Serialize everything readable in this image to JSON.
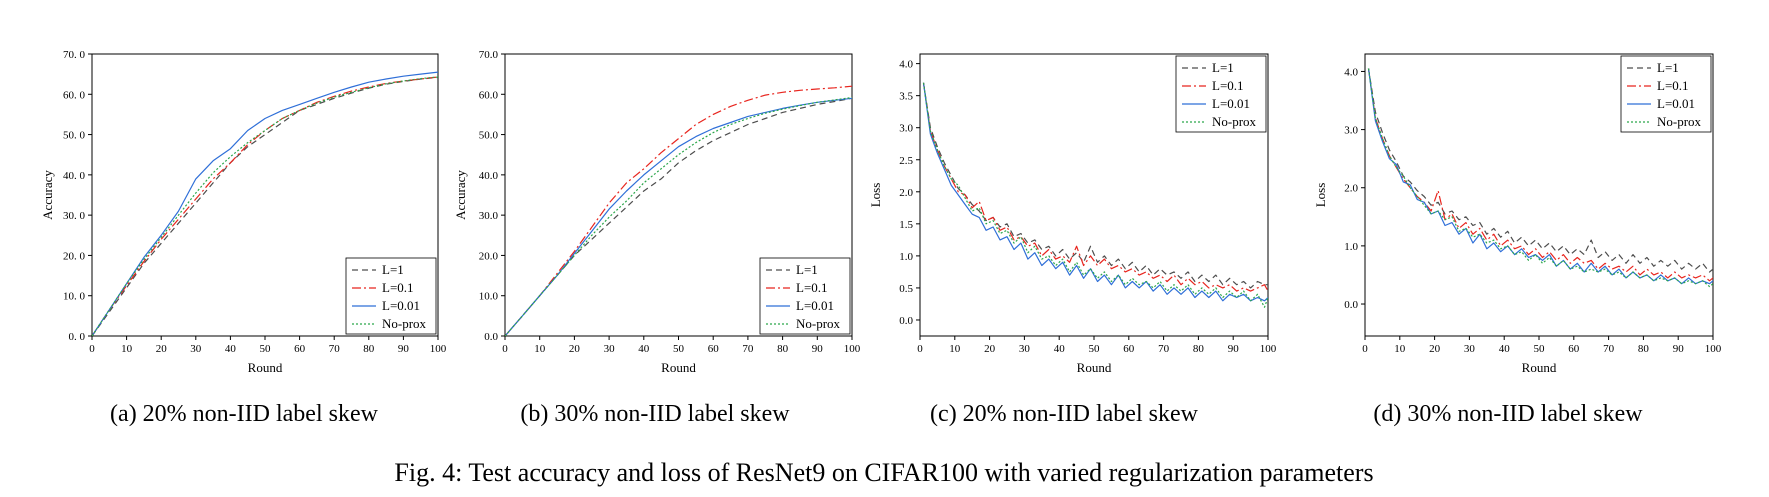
{
  "figure": {
    "caption": "Fig. 4: Test accuracy and loss of ResNet9 on CIFAR100 with varied regularization parameters"
  },
  "styles": {
    "colors": {
      "L=1": "#4d4d4d",
      "L=0.1": "#e8251e",
      "L=0.01": "#2f6fd8",
      "No-prox": "#2aa64a"
    },
    "dashes": {
      "L=1": "6,4",
      "L=0.1": "9,3,2,3",
      "L=0.01": "",
      "No-prox": "2,2"
    }
  },
  "chart_data": [
    {
      "type": "line",
      "subcaption": "(a) 20% non-IID label skew",
      "xlabel": "Round",
      "ylabel": "Accuracy",
      "xlim": [
        0,
        100
      ],
      "ylim": [
        0,
        70
      ],
      "xticks": [
        "0",
        "10",
        "20",
        "30",
        "40",
        "50",
        "60",
        "70",
        "80",
        "90",
        "100"
      ],
      "xtick_values": [
        0,
        10,
        20,
        30,
        40,
        50,
        60,
        70,
        80,
        90,
        100
      ],
      "yticks": [
        "0. 0",
        "10. 0",
        "20. 0",
        "30. 0",
        "40. 0",
        "50. 0",
        "60. 0",
        "70. 0"
      ],
      "ytick_values": [
        0,
        10,
        20,
        30,
        40,
        50,
        60,
        70
      ],
      "legend": {
        "position": "bottom-right",
        "entries": [
          "L=1",
          "L=0.1",
          "L=0.01",
          "No-prox"
        ]
      },
      "x": [
        0,
        5,
        10,
        15,
        20,
        25,
        30,
        35,
        40,
        45,
        50,
        55,
        60,
        65,
        70,
        75,
        80,
        85,
        90,
        95,
        100
      ],
      "series": [
        {
          "name": "L=1",
          "values": [
            0,
            6,
            12,
            18,
            23,
            28,
            33,
            38,
            43,
            47,
            50,
            53,
            56,
            57.5,
            59,
            60.3,
            61.5,
            62.5,
            63.2,
            63.8,
            64.2
          ]
        },
        {
          "name": "L=0.1",
          "values": [
            0,
            6.5,
            12.5,
            18.5,
            24,
            29,
            34,
            39,
            43,
            47.5,
            51,
            54,
            56,
            58,
            59.5,
            60.8,
            61.8,
            62.7,
            63.3,
            63.8,
            64.3
          ]
        },
        {
          "name": "L=0.01",
          "values": [
            0,
            6.5,
            13,
            19.5,
            25,
            31,
            39,
            43.5,
            46.5,
            51,
            54,
            56,
            57.5,
            59,
            60.5,
            61.8,
            63,
            63.8,
            64.5,
            65,
            65.5
          ]
        },
        {
          "name": "No-prox",
          "values": [
            0,
            6.5,
            13,
            19,
            24.5,
            30,
            35.5,
            40.5,
            44.5,
            48,
            51,
            54,
            56,
            57.8,
            59.3,
            60.5,
            61.6,
            62.6,
            63.3,
            63.9,
            64.3
          ]
        }
      ]
    },
    {
      "type": "line",
      "subcaption": "(b) 30% non-IID label skew",
      "xlabel": "Round",
      "ylabel": "Accuracy",
      "xlim": [
        0,
        100
      ],
      "ylim": [
        0,
        70
      ],
      "xticks": [
        "0",
        "10",
        "20",
        "30",
        "40",
        "50",
        "60",
        "70",
        "80",
        "90",
        "100"
      ],
      "xtick_values": [
        0,
        10,
        20,
        30,
        40,
        50,
        60,
        70,
        80,
        90,
        100
      ],
      "yticks": [
        "0.0",
        "10.0",
        "20.0",
        "30.0",
        "40.0",
        "50.0",
        "60.0",
        "70.0"
      ],
      "ytick_values": [
        0,
        10,
        20,
        30,
        40,
        50,
        60,
        70
      ],
      "legend": {
        "position": "bottom-right",
        "entries": [
          "L=1",
          "L=0.1",
          "L=0.01",
          "No-prox"
        ]
      },
      "x": [
        0,
        5,
        10,
        15,
        20,
        25,
        30,
        35,
        40,
        45,
        50,
        55,
        60,
        65,
        70,
        75,
        80,
        85,
        90,
        95,
        100
      ],
      "series": [
        {
          "name": "L=1",
          "values": [
            0,
            5,
            10,
            15,
            20,
            24,
            28,
            32,
            36,
            39,
            43,
            46,
            48.5,
            50.5,
            52.5,
            54,
            55.5,
            56.5,
            57.5,
            58.2,
            59
          ]
        },
        {
          "name": "L=0.1",
          "values": [
            0,
            5,
            10,
            15.5,
            21,
            27,
            33,
            38,
            41.5,
            45.5,
            49,
            52.5,
            55,
            57,
            58.5,
            59.8,
            60.5,
            61,
            61.3,
            61.6,
            62
          ]
        },
        {
          "name": "L=0.01",
          "values": [
            0,
            5,
            10,
            15,
            20.5,
            26,
            31.5,
            36,
            40,
            43.5,
            47,
            49.5,
            51.5,
            53,
            54.5,
            55.5,
            56.5,
            57.3,
            58,
            58.5,
            59
          ]
        },
        {
          "name": "No-prox",
          "values": [
            0,
            5,
            10,
            15,
            20,
            25,
            29.5,
            33.5,
            38,
            41.5,
            45,
            48,
            50.5,
            52.5,
            54,
            55.3,
            56.3,
            57.2,
            58,
            58.6,
            59.2
          ]
        }
      ]
    },
    {
      "type": "line",
      "subcaption": "(c) 20% non-IID label skew",
      "xlabel": "Round",
      "ylabel": "Loss",
      "xlim": [
        0,
        100
      ],
      "ylim": [
        -0.25,
        4.15
      ],
      "xticks": [
        "0",
        "10",
        "20",
        "30",
        "40",
        "50",
        "60",
        "70",
        "80",
        "90",
        "100"
      ],
      "xtick_values": [
        0,
        10,
        20,
        30,
        40,
        50,
        60,
        70,
        80,
        90,
        100
      ],
      "yticks": [
        "0.0",
        "0.5",
        "1.0",
        "1.5",
        "2.0",
        "2.5",
        "3.0",
        "3.5",
        "4.0"
      ],
      "ytick_values": [
        0,
        0.5,
        1,
        1.5,
        2,
        2.5,
        3,
        3.5,
        4
      ],
      "legend": {
        "position": "top-right",
        "entries": [
          "L=1",
          "L=0.1",
          "L=0.01",
          "No-prox"
        ]
      },
      "x": [
        1,
        3,
        5,
        7,
        9,
        11,
        13,
        15,
        17,
        19,
        21,
        23,
        25,
        27,
        29,
        31,
        33,
        35,
        37,
        39,
        41,
        43,
        45,
        47,
        49,
        51,
        53,
        55,
        57,
        59,
        61,
        63,
        65,
        67,
        69,
        71,
        73,
        75,
        77,
        79,
        81,
        83,
        85,
        87,
        89,
        91,
        93,
        95,
        97,
        99,
        100
      ],
      "series": [
        {
          "name": "L=1",
          "values": [
            3.7,
            3.0,
            2.7,
            2.45,
            2.25,
            2.05,
            1.95,
            1.8,
            1.7,
            1.55,
            1.6,
            1.45,
            1.5,
            1.3,
            1.35,
            1.2,
            1.25,
            1.1,
            1.15,
            1.0,
            1.1,
            0.95,
            1.05,
            0.9,
            1.15,
            0.9,
            1.0,
            0.85,
            0.95,
            0.8,
            0.9,
            0.75,
            0.85,
            0.7,
            0.8,
            0.7,
            0.75,
            0.65,
            0.75,
            0.6,
            0.7,
            0.6,
            0.7,
            0.55,
            0.65,
            0.55,
            0.6,
            0.5,
            0.6,
            0.55,
            0.55
          ]
        },
        {
          "name": "L=0.1",
          "values": [
            3.7,
            2.95,
            2.65,
            2.4,
            2.2,
            2.0,
            1.95,
            1.75,
            1.85,
            1.55,
            1.6,
            1.4,
            1.45,
            1.25,
            1.3,
            1.15,
            1.2,
            1.0,
            1.1,
            0.95,
            1.0,
            0.9,
            1.15,
            0.85,
            1.0,
            0.85,
            0.95,
            0.8,
            0.85,
            0.75,
            0.8,
            0.7,
            0.75,
            0.65,
            0.7,
            0.6,
            0.7,
            0.55,
            0.65,
            0.55,
            0.6,
            0.5,
            0.55,
            0.5,
            0.55,
            0.45,
            0.5,
            0.45,
            0.5,
            0.55,
            0.45
          ]
        },
        {
          "name": "L=0.01",
          "values": [
            3.7,
            2.9,
            2.6,
            2.35,
            2.1,
            1.95,
            1.8,
            1.65,
            1.6,
            1.4,
            1.45,
            1.25,
            1.3,
            1.1,
            1.2,
            0.95,
            1.05,
            0.85,
            0.95,
            0.8,
            0.9,
            0.7,
            0.85,
            0.65,
            0.8,
            0.6,
            0.7,
            0.55,
            0.7,
            0.5,
            0.6,
            0.5,
            0.6,
            0.45,
            0.55,
            0.4,
            0.5,
            0.4,
            0.5,
            0.35,
            0.45,
            0.35,
            0.45,
            0.3,
            0.4,
            0.35,
            0.4,
            0.3,
            0.35,
            0.3,
            0.35
          ]
        },
        {
          "name": "No-prox",
          "values": [
            3.7,
            2.95,
            2.65,
            2.4,
            2.2,
            2.1,
            1.9,
            1.7,
            1.75,
            1.5,
            1.55,
            1.35,
            1.4,
            1.2,
            1.3,
            1.05,
            1.15,
            0.95,
            1.0,
            0.85,
            0.95,
            0.75,
            0.9,
            0.7,
            0.8,
            0.65,
            0.75,
            0.6,
            0.7,
            0.55,
            0.65,
            0.55,
            0.6,
            0.5,
            0.6,
            0.45,
            0.55,
            0.45,
            0.55,
            0.4,
            0.5,
            0.4,
            0.5,
            0.35,
            0.45,
            0.35,
            0.45,
            0.3,
            0.4,
            0.2,
            0.35
          ]
        }
      ]
    },
    {
      "type": "line",
      "subcaption": "(d) 30% non-IID label skew",
      "xlabel": "Round",
      "ylabel": "Loss",
      "xlim": [
        0,
        100
      ],
      "ylim": [
        -0.55,
        4.3
      ],
      "xticks": [
        "0",
        "10",
        "20",
        "30",
        "40",
        "50",
        "60",
        "70",
        "80",
        "90",
        "100"
      ],
      "xtick_values": [
        0,
        10,
        20,
        30,
        40,
        50,
        60,
        70,
        80,
        90,
        100
      ],
      "yticks": [
        "0.0",
        "1.0",
        "2.0",
        "3.0",
        "4.0"
      ],
      "ytick_values": [
        0,
        1,
        2,
        3,
        4
      ],
      "legend": {
        "position": "top-right",
        "entries": [
          "L=1",
          "L=0.1",
          "L=0.01",
          "No-prox"
        ]
      },
      "x": [
        1,
        3,
        5,
        7,
        9,
        11,
        13,
        15,
        17,
        19,
        21,
        23,
        25,
        27,
        29,
        31,
        33,
        35,
        37,
        39,
        41,
        43,
        45,
        47,
        49,
        51,
        53,
        55,
        57,
        59,
        61,
        63,
        65,
        67,
        69,
        71,
        73,
        75,
        77,
        79,
        81,
        83,
        85,
        87,
        89,
        91,
        93,
        95,
        97,
        99,
        100
      ],
      "series": [
        {
          "name": "L=1",
          "values": [
            4.05,
            3.3,
            2.95,
            2.65,
            2.45,
            2.2,
            2.1,
            1.95,
            1.85,
            1.7,
            1.75,
            1.55,
            1.6,
            1.45,
            1.5,
            1.35,
            1.4,
            1.2,
            1.3,
            1.15,
            1.25,
            1.05,
            1.15,
            1.0,
            1.1,
            0.95,
            1.05,
            0.9,
            1.0,
            0.85,
            0.95,
            0.85,
            1.1,
            0.8,
            0.9,
            0.75,
            0.85,
            0.7,
            0.85,
            0.7,
            0.8,
            0.65,
            0.75,
            0.65,
            0.75,
            0.6,
            0.7,
            0.6,
            0.7,
            0.55,
            0.6
          ]
        },
        {
          "name": "L=0.1",
          "values": [
            4.05,
            3.2,
            2.85,
            2.55,
            2.35,
            2.15,
            2.0,
            1.85,
            1.75,
            1.6,
            1.95,
            1.45,
            1.55,
            1.3,
            1.4,
            1.2,
            1.3,
            1.1,
            1.2,
            1.0,
            1.1,
            0.95,
            1.0,
            0.85,
            0.95,
            0.8,
            0.9,
            0.75,
            0.85,
            0.7,
            0.8,
            0.7,
            0.75,
            0.6,
            0.7,
            0.6,
            0.65,
            0.55,
            0.65,
            0.5,
            0.6,
            0.5,
            0.55,
            0.45,
            0.55,
            0.45,
            0.5,
            0.45,
            0.5,
            0.4,
            0.45
          ]
        },
        {
          "name": "L=0.01",
          "values": [
            4.05,
            3.15,
            2.8,
            2.5,
            2.4,
            2.1,
            2.05,
            1.8,
            1.75,
            1.55,
            1.6,
            1.35,
            1.4,
            1.2,
            1.3,
            1.05,
            1.2,
            0.95,
            1.05,
            0.9,
            1.0,
            0.85,
            0.95,
            0.8,
            0.85,
            0.75,
            0.85,
            0.65,
            0.75,
            0.6,
            0.7,
            0.55,
            0.7,
            0.55,
            0.65,
            0.5,
            0.6,
            0.45,
            0.55,
            0.45,
            0.5,
            0.4,
            0.5,
            0.4,
            0.45,
            0.35,
            0.45,
            0.35,
            0.4,
            0.35,
            0.4
          ]
        },
        {
          "name": "No-prox",
          "values": [
            4.05,
            3.2,
            2.85,
            2.55,
            2.35,
            2.2,
            2.0,
            1.85,
            1.7,
            1.55,
            1.6,
            1.45,
            1.5,
            1.25,
            1.3,
            1.15,
            1.2,
            1.05,
            1.1,
            0.95,
            1.0,
            0.85,
            0.9,
            0.75,
            0.85,
            0.7,
            0.8,
            0.65,
            0.75,
            0.6,
            0.65,
            0.55,
            0.6,
            0.55,
            0.6,
            0.5,
            0.55,
            0.45,
            0.55,
            0.45,
            0.5,
            0.4,
            0.45,
            0.4,
            0.45,
            0.35,
            0.4,
            0.35,
            0.4,
            0.3,
            0.35
          ]
        }
      ]
    }
  ]
}
